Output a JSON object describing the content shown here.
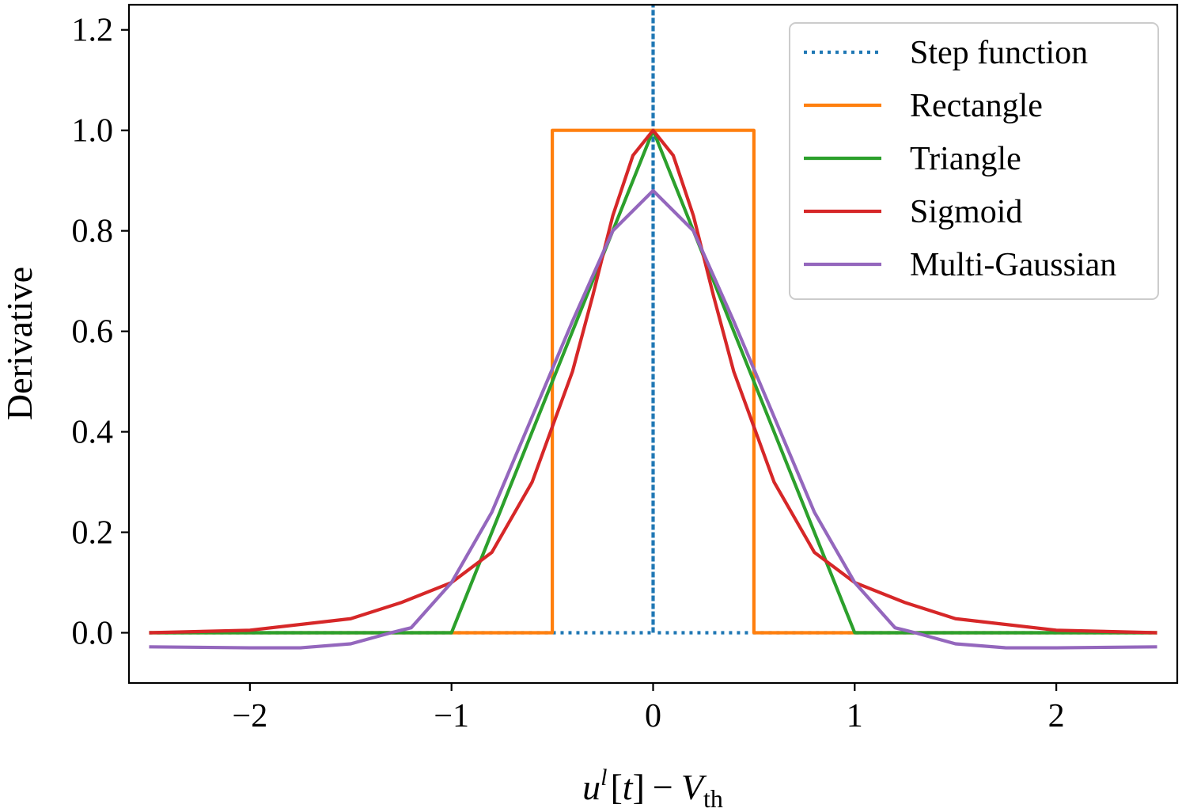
{
  "chart_data": {
    "type": "line",
    "xlabel": {
      "u": "u",
      "sup": "l",
      "bracket_open": "[",
      "t": "t",
      "bracket_close": "]",
      "minus": "−",
      "V": "V",
      "sub": "th"
    },
    "ylabel": "Derivative",
    "xlim": [
      -2.6,
      2.6
    ],
    "ylim": [
      -0.1,
      1.25
    ],
    "xticks": [
      -2,
      -1,
      0,
      1,
      2
    ],
    "xtick_labels": [
      "−2",
      "−1",
      "0",
      "1",
      "2"
    ],
    "yticks": [
      0.0,
      0.2,
      0.4,
      0.6,
      0.8,
      1.0,
      1.2
    ],
    "ytick_labels": [
      "0.0",
      "0.2",
      "0.4",
      "0.6",
      "0.8",
      "1.0",
      "1.2"
    ],
    "grid": false,
    "legend_position": "top-right",
    "series": [
      {
        "name": "Step function",
        "color": "#1f77b4",
        "style": "dotted",
        "x": [
          -2.5,
          -0.5,
          -0.5,
          0.0,
          0.0,
          0.0,
          0.5,
          2.5
        ],
        "y": [
          0.0,
          0.0,
          0.0,
          0.0,
          1.25,
          0.0,
          0.0,
          0.0
        ]
      },
      {
        "name": "Rectangle",
        "color": "#ff7f0e",
        "style": "solid",
        "x": [
          -2.5,
          -0.5,
          -0.5,
          0.5,
          0.5,
          2.5
        ],
        "y": [
          0.0,
          0.0,
          1.0,
          1.0,
          0.0,
          0.0
        ]
      },
      {
        "name": "Triangle",
        "color": "#2ca02c",
        "style": "solid",
        "x": [
          -2.5,
          -1.0,
          0.0,
          1.0,
          2.5
        ],
        "y": [
          0.0,
          0.0,
          1.0,
          0.0,
          0.0
        ]
      },
      {
        "name": "Sigmoid",
        "color": "#d62728",
        "style": "solid",
        "x": [
          -2.5,
          -2.0,
          -1.5,
          -1.25,
          -1.0,
          -0.8,
          -0.6,
          -0.4,
          -0.3,
          -0.2,
          -0.1,
          0.0,
          0.1,
          0.2,
          0.3,
          0.4,
          0.6,
          0.8,
          1.0,
          1.25,
          1.5,
          2.0,
          2.5
        ],
        "y": [
          0.0,
          0.005,
          0.028,
          0.06,
          0.1,
          0.16,
          0.3,
          0.52,
          0.67,
          0.83,
          0.95,
          1.0,
          0.95,
          0.83,
          0.67,
          0.52,
          0.3,
          0.16,
          0.1,
          0.06,
          0.028,
          0.005,
          0.0
        ]
      },
      {
        "name": "Multi-Gaussian",
        "color": "#9467bd",
        "style": "solid",
        "x": [
          -2.5,
          -2.0,
          -1.75,
          -1.5,
          -1.3,
          -1.2,
          -1.0,
          -0.8,
          -0.6,
          -0.4,
          -0.2,
          0.0,
          0.2,
          0.4,
          0.6,
          0.8,
          1.0,
          1.2,
          1.3,
          1.5,
          1.75,
          2.0,
          2.5
        ],
        "y": [
          -0.028,
          -0.03,
          -0.03,
          -0.022,
          0.0,
          0.01,
          0.1,
          0.24,
          0.43,
          0.62,
          0.8,
          0.88,
          0.8,
          0.62,
          0.43,
          0.24,
          0.1,
          0.01,
          0.0,
          -0.022,
          -0.03,
          -0.03,
          -0.028
        ]
      }
    ]
  }
}
